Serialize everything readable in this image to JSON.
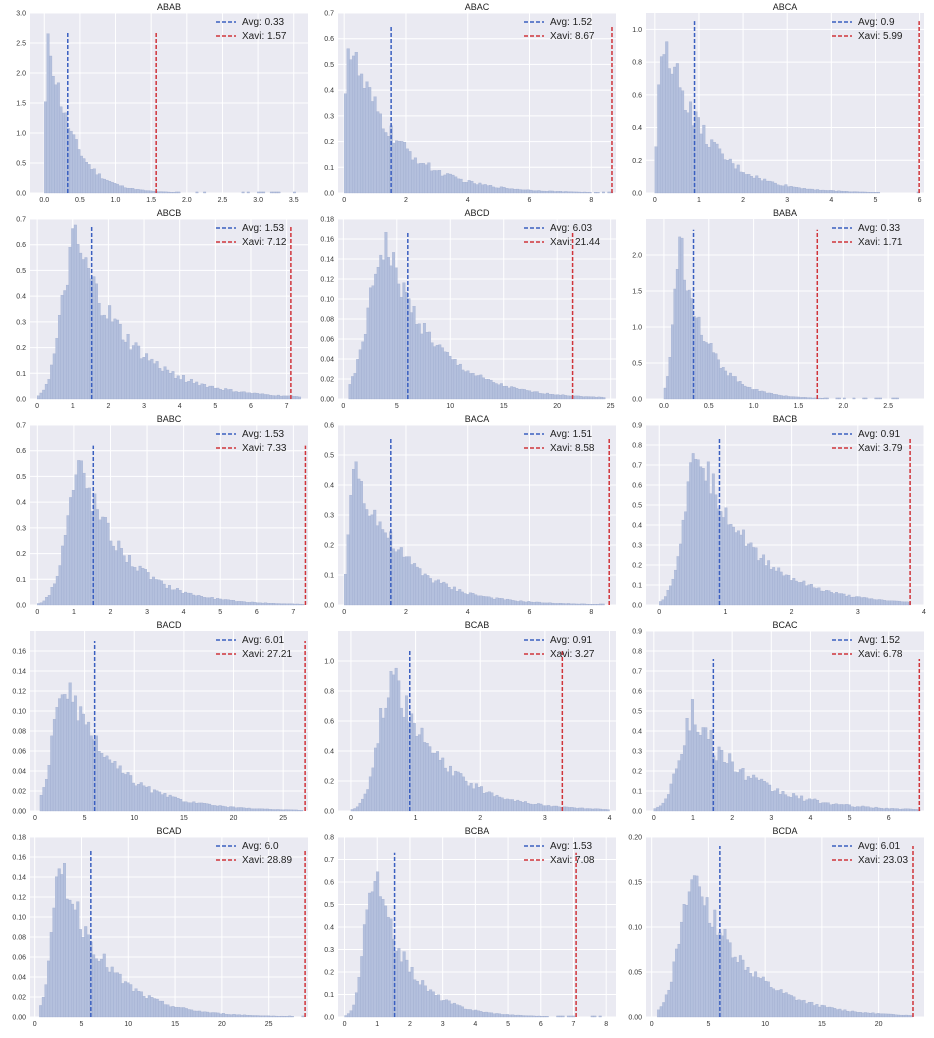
{
  "colors": {
    "background": "#eaeaf2",
    "grid": "#ffffff",
    "bars": "#b4c0dd",
    "bar_edge": "#9aa8cc",
    "avg_line": "#3a5fc0",
    "xavi_line": "#d0343a"
  },
  "chart_data": [
    {
      "type": "bar",
      "title": "ABAB",
      "avg_label": "Avg: 0.33",
      "xavi_label": "Xavi: 1.57",
      "avg": 0.33,
      "xavi": 1.57,
      "xlim": [
        -0.2,
        3.7
      ],
      "ylim": [
        0,
        3.0
      ],
      "xticks": [
        0.0,
        0.5,
        1.0,
        1.5,
        2.0,
        2.5,
        3.0,
        3.5
      ],
      "xtick_labels": [
        "0.0",
        "0.5",
        "1.0",
        "1.5",
        "2.0",
        "2.5",
        "3.0",
        "3.5"
      ],
      "yticks": [
        0,
        0.5,
        1.0,
        1.5,
        2.0,
        2.5,
        3.0
      ],
      "ytick_labels": [
        "0.0",
        "0.5",
        "1.0",
        "1.5",
        "2.0",
        "2.5",
        "3.0"
      ],
      "line_top": 2.7,
      "hist": {
        "lo": 0.0,
        "hi": 3.6,
        "peak_x": 0.07,
        "peak": 2.55,
        "rise": 0.07,
        "decay": 0.33,
        "noise": 0.12
      }
    },
    {
      "type": "bar",
      "title": "ABAC",
      "avg_label": "Avg: 1.52",
      "xavi_label": "Xavi: 8.67",
      "avg": 1.52,
      "xavi": 8.67,
      "xlim": [
        -0.2,
        8.8
      ],
      "ylim": [
        0,
        0.7
      ],
      "xticks": [
        0,
        2,
        4,
        6,
        8
      ],
      "xtick_labels": [
        "0",
        "2",
        "4",
        "6",
        "8"
      ],
      "yticks": [
        0,
        0.1,
        0.2,
        0.3,
        0.4,
        0.5,
        0.6,
        0.7
      ],
      "ytick_labels": [
        "0.0",
        "0.1",
        "0.2",
        "0.3",
        "0.4",
        "0.5",
        "0.6",
        "0.7"
      ],
      "line_top": 0.65,
      "hist": {
        "lo": 0.0,
        "hi": 8.7,
        "peak_x": 0.15,
        "peak": 0.58,
        "rise": 0.2,
        "decay": 1.5,
        "noise": 0.15
      }
    },
    {
      "type": "bar",
      "title": "ABCA",
      "avg_label": "Avg: 0.9",
      "xavi_label": "Xavi: 5.99",
      "avg": 0.9,
      "xavi": 5.99,
      "xlim": [
        -0.2,
        6.1
      ],
      "ylim": [
        0,
        1.1
      ],
      "xticks": [
        0,
        1,
        2,
        3,
        4,
        5,
        6
      ],
      "xtick_labels": [
        "0",
        "1",
        "2",
        "3",
        "4",
        "5",
        "6"
      ],
      "yticks": [
        0,
        0.2,
        0.4,
        0.6,
        0.8,
        1.0
      ],
      "ytick_labels": [
        "0.0",
        "0.2",
        "0.4",
        "0.6",
        "0.8",
        "1.0"
      ],
      "line_top": 1.05,
      "hist": {
        "lo": 0.0,
        "hi": 6.0,
        "peak_x": 0.2,
        "peak": 1.0,
        "rise": 0.15,
        "decay": 0.9,
        "noise": 0.15
      }
    },
    {
      "type": "bar",
      "title": "ABCB",
      "avg_label": "Avg: 1.53",
      "xavi_label": "Xavi: 7.12",
      "avg": 1.53,
      "xavi": 7.12,
      "xlim": [
        -0.2,
        7.6
      ],
      "ylim": [
        0,
        0.7
      ],
      "xticks": [
        0,
        1,
        2,
        3,
        4,
        5,
        6,
        7
      ],
      "xtick_labels": [
        "0",
        "1",
        "2",
        "3",
        "4",
        "5",
        "6",
        "7"
      ],
      "yticks": [
        0,
        0.1,
        0.2,
        0.3,
        0.4,
        0.5,
        0.6,
        0.7
      ],
      "ytick_labels": [
        "0.0",
        "0.1",
        "0.2",
        "0.3",
        "0.4",
        "0.5",
        "0.6",
        "0.7"
      ],
      "line_top": 0.67,
      "hist": {
        "lo": 0.0,
        "hi": 7.4,
        "peak_x": 1.1,
        "peak": 0.6,
        "rise": 0.55,
        "decay": 1.5,
        "noise": 0.15
      }
    },
    {
      "type": "bar",
      "title": "ABCD",
      "avg_label": "Avg: 6.03",
      "xavi_label": "Xavi: 21.44",
      "avg": 6.03,
      "xavi": 21.44,
      "xlim": [
        -0.5,
        25.5
      ],
      "ylim": [
        0,
        0.18
      ],
      "xticks": [
        0,
        5,
        10,
        15,
        20,
        25
      ],
      "xtick_labels": [
        "0",
        "5",
        "10",
        "15",
        "20",
        "25"
      ],
      "yticks": [
        0,
        0.02,
        0.04,
        0.06,
        0.08,
        0.1,
        0.12,
        0.14,
        0.16,
        0.18
      ],
      "ytick_labels": [
        "0.00",
        "0.02",
        "0.04",
        "0.06",
        "0.08",
        "0.10",
        "0.12",
        "0.14",
        "0.16",
        "0.18"
      ],
      "line_top": 0.167,
      "hist": {
        "lo": 0.5,
        "hi": 24.5,
        "peak_x": 4.0,
        "peak": 0.155,
        "rise": 2.2,
        "decay": 4.5,
        "noise": 0.12
      }
    },
    {
      "type": "bar",
      "title": "BABA",
      "avg_label": "Avg: 0.33",
      "xavi_label": "Xavi: 1.71",
      "avg": 0.33,
      "xavi": 1.71,
      "xlim": [
        -0.2,
        2.9
      ],
      "ylim": [
        0,
        2.5
      ],
      "xticks": [
        0.0,
        0.5,
        1.0,
        1.5,
        2.0,
        2.5
      ],
      "xtick_labels": [
        "0.0",
        "0.5",
        "1.0",
        "1.5",
        "2.0",
        "2.5"
      ],
      "yticks": [
        0,
        0.5,
        1.0,
        1.5,
        2.0
      ],
      "ytick_labels": [
        "0.0",
        "0.5",
        "1.0",
        "1.5",
        "2.0"
      ],
      "line_top": 2.35,
      "hist": {
        "lo": 0.0,
        "hi": 2.7,
        "peak_x": 0.18,
        "peak": 2.2,
        "rise": 0.1,
        "decay": 0.3,
        "noise": 0.12
      }
    },
    {
      "type": "bar",
      "title": "BABC",
      "avg_label": "Avg: 1.53",
      "xavi_label": "Xavi: 7.33",
      "avg": 1.53,
      "xavi": 7.33,
      "xlim": [
        -0.2,
        7.4
      ],
      "ylim": [
        0,
        0.7
      ],
      "xticks": [
        0,
        1,
        2,
        3,
        4,
        5,
        6,
        7
      ],
      "xtick_labels": [
        "0",
        "1",
        "2",
        "3",
        "4",
        "5",
        "6",
        "7"
      ],
      "yticks": [
        0,
        0.1,
        0.2,
        0.3,
        0.4,
        0.5,
        0.6,
        0.7
      ],
      "ytick_labels": [
        "0.0",
        "0.1",
        "0.2",
        "0.3",
        "0.4",
        "0.5",
        "0.6",
        "0.7"
      ],
      "line_top": 0.62,
      "hist": {
        "lo": 0.0,
        "hi": 7.3,
        "peak_x": 1.2,
        "peak": 0.53,
        "rise": 0.55,
        "decay": 1.2,
        "noise": 0.14
      }
    },
    {
      "type": "bar",
      "title": "BACA",
      "avg_label": "Avg: 1.51",
      "xavi_label": "Xavi: 8.58",
      "avg": 1.51,
      "xavi": 8.58,
      "xlim": [
        -0.2,
        8.8
      ],
      "ylim": [
        0,
        0.6
      ],
      "xticks": [
        0,
        2,
        4,
        6,
        8
      ],
      "xtick_labels": [
        "0",
        "2",
        "4",
        "6",
        "8"
      ],
      "yticks": [
        0,
        0.1,
        0.2,
        0.3,
        0.4,
        0.5,
        0.6
      ],
      "ytick_labels": [
        "0.0",
        "0.1",
        "0.2",
        "0.3",
        "0.4",
        "0.5",
        "0.6"
      ],
      "line_top": 0.56,
      "hist": {
        "lo": 0.0,
        "hi": 8.6,
        "peak_x": 0.3,
        "peak": 0.48,
        "rise": 0.2,
        "decay": 1.5,
        "noise": 0.15
      }
    },
    {
      "type": "bar",
      "title": "BACB",
      "avg_label": "Avg: 0.91",
      "xavi_label": "Xavi: 3.79",
      "avg": 0.91,
      "xavi": 3.79,
      "xlim": [
        -0.2,
        4.0
      ],
      "ylim": [
        0,
        0.9
      ],
      "xticks": [
        0,
        1,
        2,
        3,
        4
      ],
      "xtick_labels": [
        "0",
        "1",
        "2",
        "3",
        "4"
      ],
      "yticks": [
        0,
        0.1,
        0.2,
        0.3,
        0.4,
        0.5,
        0.6,
        0.7,
        0.8,
        0.9
      ],
      "ytick_labels": [
        "0.0",
        "0.1",
        "0.2",
        "0.3",
        "0.4",
        "0.5",
        "0.6",
        "0.7",
        "0.8",
        "0.9"
      ],
      "line_top": 0.83,
      "hist": {
        "lo": 0.0,
        "hi": 3.8,
        "peak_x": 0.6,
        "peak": 0.78,
        "rise": 0.3,
        "decay": 0.8,
        "noise": 0.12
      }
    },
    {
      "type": "bar",
      "title": "BACD",
      "avg_label": "Avg: 6.01",
      "xavi_label": "Xavi: 27.21",
      "avg": 6.01,
      "xavi": 27.21,
      "xlim": [
        -0.5,
        27.5
      ],
      "ylim": [
        0,
        0.18
      ],
      "xticks": [
        0,
        5,
        10,
        15,
        20,
        25
      ],
      "xtick_labels": [
        "0",
        "5",
        "10",
        "15",
        "20",
        "25"
      ],
      "yticks": [
        0,
        0.02,
        0.04,
        0.06,
        0.08,
        0.1,
        0.12,
        0.14,
        0.16
      ],
      "ytick_labels": [
        "0.00",
        "0.02",
        "0.04",
        "0.06",
        "0.08",
        "0.10",
        "0.12",
        "0.14",
        "0.16"
      ],
      "line_top": 0.17,
      "hist": {
        "lo": 0.5,
        "hi": 27.0,
        "peak_x": 3.0,
        "peak": 0.13,
        "rise": 1.6,
        "decay": 4.8,
        "noise": 0.14
      }
    },
    {
      "type": "bar",
      "title": "BCAB",
      "avg_label": "Avg: 0.91",
      "xavi_label": "Xavi: 3.27",
      "avg": 0.91,
      "xavi": 3.27,
      "xlim": [
        -0.2,
        4.1
      ],
      "ylim": [
        0,
        1.2
      ],
      "xticks": [
        0,
        1,
        2,
        3,
        4
      ],
      "xtick_labels": [
        "0",
        "1",
        "2",
        "3",
        "4"
      ],
      "yticks": [
        0,
        0.2,
        0.4,
        0.6,
        0.8,
        1.0
      ],
      "ytick_labels": [
        "0.0",
        "0.2",
        "0.4",
        "0.6",
        "0.8",
        "1.0"
      ],
      "line_top": 1.08,
      "hist": {
        "lo": 0.0,
        "hi": 4.0,
        "peak_x": 0.65,
        "peak": 0.9,
        "rise": 0.3,
        "decay": 0.75,
        "noise": 0.14
      }
    },
    {
      "type": "bar",
      "title": "BCAC",
      "avg_label": "Avg: 1.52",
      "xavi_label": "Xavi: 6.78",
      "avg": 1.52,
      "xavi": 6.78,
      "xlim": [
        -0.2,
        6.9
      ],
      "ylim": [
        0,
        0.9
      ],
      "xticks": [
        0,
        1,
        2,
        3,
        4,
        5,
        6
      ],
      "xtick_labels": [
        "0",
        "1",
        "2",
        "3",
        "4",
        "5",
        "6"
      ],
      "yticks": [
        0,
        0.1,
        0.2,
        0.3,
        0.4,
        0.5,
        0.6,
        0.7,
        0.8,
        0.9
      ],
      "ytick_labels": [
        "0.0",
        "0.1",
        "0.2",
        "0.3",
        "0.4",
        "0.5",
        "0.6",
        "0.7",
        "0.8",
        "0.9"
      ],
      "line_top": 0.76,
      "hist": {
        "lo": 0.0,
        "hi": 6.8,
        "peak_x": 1.0,
        "peak": 0.47,
        "rise": 0.5,
        "decay": 1.4,
        "noise": 0.2
      }
    },
    {
      "type": "bar",
      "title": "BCAD",
      "avg_label": "Avg: 6.0",
      "xavi_label": "Xavi: 28.89",
      "avg": 6.0,
      "xavi": 28.89,
      "xlim": [
        -0.5,
        29.2
      ],
      "ylim": [
        0,
        0.18
      ],
      "xticks": [
        0,
        5,
        10,
        15,
        20,
        25
      ],
      "xtick_labels": [
        "0",
        "5",
        "10",
        "15",
        "20",
        "25"
      ],
      "yticks": [
        0,
        0.02,
        0.04,
        0.06,
        0.08,
        0.1,
        0.12,
        0.14,
        0.16,
        0.18
      ],
      "ytick_labels": [
        "0.00",
        "0.02",
        "0.04",
        "0.06",
        "0.08",
        "0.10",
        "0.12",
        "0.14",
        "0.16",
        "0.18"
      ],
      "line_top": 0.167,
      "hist": {
        "lo": 0.5,
        "hi": 28.8,
        "peak_x": 3.0,
        "peak": 0.15,
        "rise": 1.5,
        "decay": 4.5,
        "noise": 0.14
      }
    },
    {
      "type": "bar",
      "title": "BCBA",
      "avg_label": "Avg: 1.53",
      "xavi_label": "Xavi: 7.08",
      "avg": 1.53,
      "xavi": 7.08,
      "xlim": [
        -0.2,
        8.3
      ],
      "ylim": [
        0,
        0.8
      ],
      "xticks": [
        0,
        1,
        2,
        3,
        4,
        5,
        6,
        7,
        8
      ],
      "xtick_labels": [
        "0",
        "1",
        "2",
        "3",
        "4",
        "5",
        "6",
        "7",
        "8"
      ],
      "yticks": [
        0,
        0.1,
        0.2,
        0.3,
        0.4,
        0.5,
        0.6,
        0.7,
        0.8
      ],
      "ytick_labels": [
        "0.0",
        "0.1",
        "0.2",
        "0.3",
        "0.4",
        "0.5",
        "0.6",
        "0.7",
        "0.8"
      ],
      "line_top": 0.73,
      "hist": {
        "lo": 0.0,
        "hi": 8.1,
        "peak_x": 0.9,
        "peak": 0.65,
        "rise": 0.4,
        "decay": 1.0,
        "noise": 0.13
      }
    },
    {
      "type": "bar",
      "title": "BCDA",
      "avg_label": "Avg: 6.01",
      "xavi_label": "Xavi: 23.03",
      "avg": 6.01,
      "xavi": 23.03,
      "xlim": [
        -0.5,
        24.0
      ],
      "ylim": [
        0,
        0.2
      ],
      "xticks": [
        0,
        5,
        10,
        15,
        20
      ],
      "xtick_labels": [
        "0",
        "5",
        "10",
        "15",
        "20"
      ],
      "yticks": [
        0,
        0.05,
        0.1,
        0.15,
        0.2
      ],
      "ytick_labels": [
        "0.00",
        "0.05",
        "0.10",
        "0.15",
        "0.20"
      ],
      "line_top": 0.19,
      "hist": {
        "lo": 0.5,
        "hi": 23.0,
        "peak_x": 4.0,
        "peak": 0.155,
        "rise": 2.0,
        "decay": 4.3,
        "noise": 0.13
      }
    }
  ]
}
